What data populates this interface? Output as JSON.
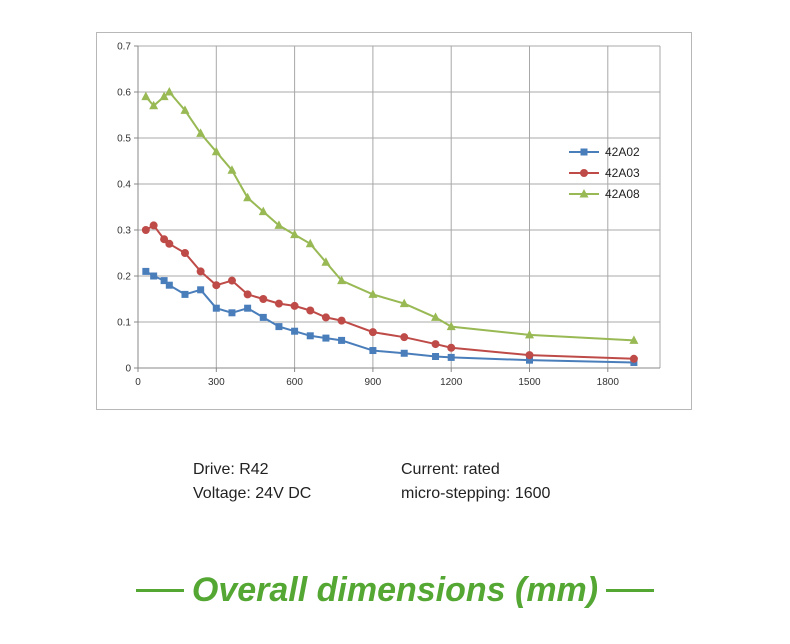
{
  "chart_data": {
    "type": "line",
    "title": "",
    "xlabel": "",
    "ylabel": "",
    "xlim": [
      0,
      2000
    ],
    "ylim": [
      0,
      0.7
    ],
    "x_ticks": [
      0,
      300,
      600,
      900,
      1200,
      1500,
      1800
    ],
    "y_ticks": [
      0,
      0.1,
      0.2,
      0.3,
      0.4,
      0.5,
      0.6,
      0.7
    ],
    "legend_position": "right",
    "grid": true,
    "series": [
      {
        "name": "42A02",
        "color": "#4a7ebb",
        "marker": "square",
        "x": [
          30,
          60,
          100,
          120,
          180,
          240,
          300,
          360,
          420,
          480,
          540,
          600,
          660,
          720,
          780,
          900,
          1020,
          1140,
          1200,
          1500,
          1900
        ],
        "y": [
          0.21,
          0.2,
          0.19,
          0.18,
          0.16,
          0.17,
          0.13,
          0.12,
          0.13,
          0.11,
          0.09,
          0.08,
          0.07,
          0.065,
          0.06,
          0.038,
          0.032,
          0.025,
          0.023,
          0.017,
          0.012
        ]
      },
      {
        "name": "42A03",
        "color": "#be4b48",
        "marker": "circle",
        "x": [
          30,
          60,
          100,
          120,
          180,
          240,
          300,
          360,
          420,
          480,
          540,
          600,
          660,
          720,
          780,
          900,
          1020,
          1140,
          1200,
          1500,
          1900
        ],
        "y": [
          0.3,
          0.31,
          0.28,
          0.27,
          0.25,
          0.21,
          0.18,
          0.19,
          0.16,
          0.15,
          0.14,
          0.135,
          0.125,
          0.11,
          0.103,
          0.078,
          0.067,
          0.052,
          0.044,
          0.028,
          0.02
        ]
      },
      {
        "name": "42A08",
        "color": "#98b954",
        "marker": "triangle",
        "x": [
          30,
          60,
          100,
          120,
          180,
          240,
          300,
          360,
          420,
          480,
          540,
          600,
          660,
          720,
          780,
          900,
          1020,
          1140,
          1200,
          1500,
          1900
        ],
        "y": [
          0.59,
          0.57,
          0.59,
          0.6,
          0.56,
          0.51,
          0.47,
          0.43,
          0.37,
          0.34,
          0.31,
          0.29,
          0.27,
          0.23,
          0.19,
          0.16,
          0.14,
          0.11,
          0.09,
          0.072,
          0.06
        ]
      }
    ]
  },
  "info": {
    "drive": "Drive: R42",
    "voltage": "Voltage: 24V DC",
    "current": "Current: rated",
    "microstepping": "micro-stepping: 1600"
  },
  "footer": {
    "title": "Overall dimensions (mm)",
    "accent_color": "#54a732"
  }
}
